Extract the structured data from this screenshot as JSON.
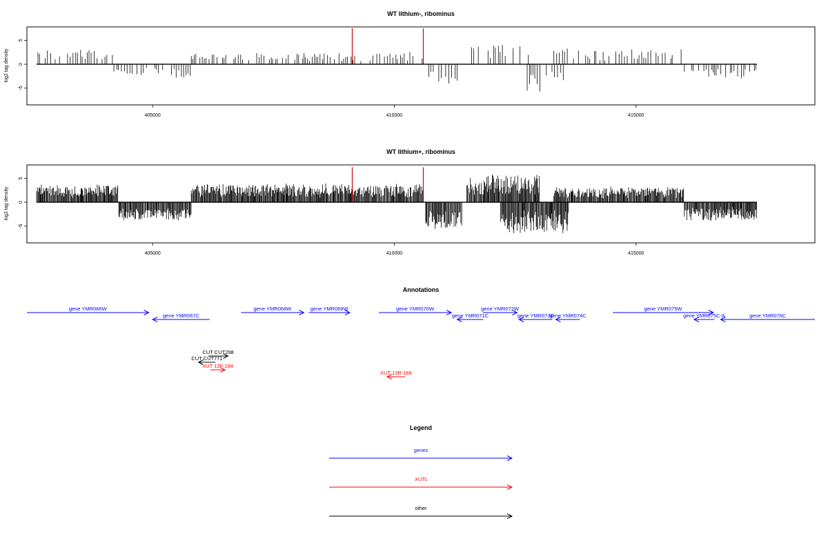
{
  "figure": {
    "panels": [
      {
        "title": "WT lithium-, ribominus",
        "ylabel": "log2 tag density",
        "density": "sparse",
        "seed": 12345
      },
      {
        "title": "WT lithium+, ribominus",
        "ylabel": "log2 tag density",
        "density": "dense",
        "seed": 67890
      }
    ],
    "annotations_title": "Annotations",
    "legend_title": "Legend",
    "legend": [
      {
        "label": "genes",
        "color": "#0000ff"
      },
      {
        "label": "XUTs",
        "color": "#ff0000"
      },
      {
        "label": "other",
        "color": "#000000"
      }
    ]
  },
  "chart_data": [
    {
      "type": "bar",
      "title": "WT lithium-, ribominus",
      "xlabel": "",
      "ylabel": "log2 tag density",
      "xlim": [
        402400,
        418700
      ],
      "ylim": [
        -8.5,
        7.8
      ],
      "xticks": [
        405000,
        410000,
        415000
      ],
      "xticklabels": [
        "405000",
        "410000",
        "415000"
      ],
      "yticks": [
        -5,
        0,
        5
      ],
      "yticklabels": [
        "-5",
        "0",
        "5"
      ],
      "baseline_range": [
        402600,
        417500
      ],
      "highlight_color": "#cc0000",
      "highlights": [
        {
          "x": 409130,
          "y": 7.5
        },
        {
          "x": 410600,
          "y": 7.5
        }
      ],
      "approx_profile": [
        {
          "x_range": [
            402600,
            404200
          ],
          "mean_y": 2.0
        },
        {
          "x_range": [
            404200,
            405800
          ],
          "mean_y": -2.0
        },
        {
          "x_range": [
            405800,
            410600
          ],
          "mean_y": 1.5
        },
        {
          "x_range": [
            410650,
            411300
          ],
          "mean_y": -3.0
        },
        {
          "x_range": [
            411600,
            412900
          ],
          "mean_y": 3.0
        },
        {
          "x_range": [
            412700,
            413500
          ],
          "mean_y": -4.0
        },
        {
          "x_range": [
            413300,
            416000
          ],
          "mean_y": 2.0
        },
        {
          "x_range": [
            416000,
            417500
          ],
          "mean_y": -2.0
        }
      ]
    },
    {
      "type": "bar",
      "title": "WT lithium+, ribominus",
      "xlabel": "",
      "ylabel": "log2 tag density",
      "xlim": [
        402400,
        418700
      ],
      "ylim": [
        -8.5,
        7.8
      ],
      "xticks": [
        405000,
        410000,
        415000
      ],
      "xticklabels": [
        "405000",
        "410000",
        "415000"
      ],
      "yticks": [
        -5,
        0,
        5
      ],
      "yticklabels": [
        "-5",
        "0",
        "5"
      ],
      "baseline_range": [
        402600,
        417500
      ],
      "highlight_color": "#cc0000",
      "highlights": [
        {
          "x": 409130,
          "y": 7.3
        },
        {
          "x": 410600,
          "y": 7.3
        }
      ],
      "approx_profile": [
        {
          "x_range": [
            402600,
            404300
          ],
          "mean_y": 2.5
        },
        {
          "x_range": [
            404300,
            405800
          ],
          "mean_y": -2.5
        },
        {
          "x_range": [
            405800,
            410600
          ],
          "mean_y": 2.5
        },
        {
          "x_range": [
            410650,
            411400
          ],
          "mean_y": -4.0
        },
        {
          "x_range": [
            411500,
            413000
          ],
          "mean_y": 4.0
        },
        {
          "x_range": [
            412200,
            413600
          ],
          "mean_y": -4.5
        },
        {
          "x_range": [
            413300,
            416000
          ],
          "mean_y": 2.0
        },
        {
          "x_range": [
            416000,
            417500
          ],
          "mean_y": -2.5
        }
      ]
    }
  ],
  "annotations": {
    "x_range": [
      402400,
      418700
    ],
    "features": [
      {
        "label": "gene YMR066W",
        "type": "gene",
        "strand": "+",
        "start": 402400,
        "end": 404920,
        "row": 0
      },
      {
        "label": "gene YMR067C",
        "type": "gene",
        "strand": "-",
        "start": 405000,
        "end": 406180,
        "row": 1
      },
      {
        "label": "gene YMR068W",
        "type": "gene",
        "strand": "+",
        "start": 406830,
        "end": 408130,
        "row": 0
      },
      {
        "label": "gene YMR069W",
        "type": "gene",
        "strand": "+",
        "start": 408230,
        "end": 409080,
        "row": 0
      },
      {
        "label": "gene YMR070W",
        "type": "gene",
        "strand": "+",
        "start": 409680,
        "end": 411180,
        "row": 0
      },
      {
        "label": "gene YMR071C",
        "type": "gene",
        "strand": "-",
        "start": 411300,
        "end": 411840,
        "row": 1
      },
      {
        "label": "gene YMR072W",
        "type": "gene",
        "strand": "+",
        "start": 411830,
        "end": 412540,
        "row": 0
      },
      {
        "label": "gene YMR073C",
        "type": "gene",
        "strand": "-",
        "start": 412580,
        "end": 413270,
        "row": 1
      },
      {
        "label": "gene YMR074C",
        "type": "gene",
        "strand": "-",
        "start": 413340,
        "end": 413840,
        "row": 1
      },
      {
        "label": "gene YMR075W",
        "type": "gene",
        "strand": "+",
        "start": 414520,
        "end": 416600,
        "row": 0
      },
      {
        "label": "gene YMR075C-A",
        "type": "gene",
        "strand": "-",
        "start": 416200,
        "end": 416620,
        "row": 1
      },
      {
        "label": "gene YMR076C",
        "type": "gene",
        "strand": "-",
        "start": 416750,
        "end": 418700,
        "row": 1
      },
      {
        "label": "CUT CUT298",
        "type": "other",
        "strand": "+",
        "start": 406150,
        "end": 406560,
        "row": 2
      },
      {
        "label": "CUT CUT771",
        "type": "other",
        "strand": "-",
        "start": 405950,
        "end": 406300,
        "row": 3
      },
      {
        "label": "XUT 13F-184",
        "type": "xut",
        "strand": "+",
        "start": 406200,
        "end": 406500,
        "row": 4
      },
      {
        "label": "XUT 13R-188",
        "type": "xut",
        "strand": "-",
        "start": 409850,
        "end": 410220,
        "row": 5
      }
    ]
  }
}
